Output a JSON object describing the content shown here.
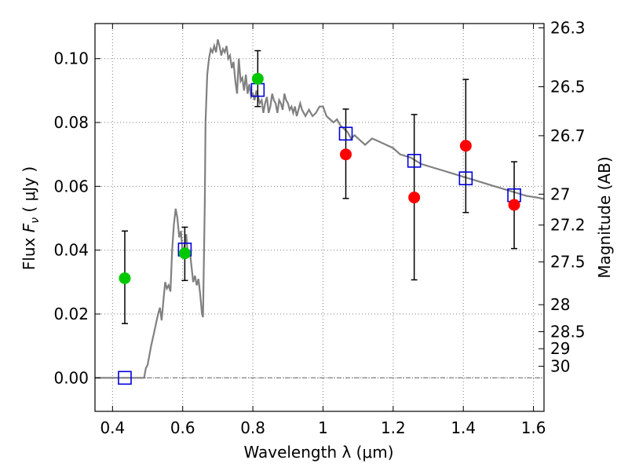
{
  "chart_data": {
    "type": "scatter",
    "title": "",
    "xlabel": "Wavelength  λ (μm)",
    "ylabel_prefix": "Flux  ",
    "ylabel_symbol": "F",
    "ylabel_subscript": "ν",
    "ylabel_unit": "  ( μJy )",
    "y2label": "Magnitude (AB)",
    "xlim": [
      0.35,
      1.63
    ],
    "ylim": [
      -0.0105,
      0.111
    ],
    "grid": true,
    "xticks": [
      0.4,
      0.6,
      0.8,
      1.0,
      1.2,
      1.4,
      1.6
    ],
    "xtick_labels": [
      "0.4",
      "0.6",
      "0.8",
      "1",
      "1.2",
      "1.4",
      "1.6"
    ],
    "yticks": [
      0.0,
      0.02,
      0.04,
      0.06,
      0.08,
      0.1
    ],
    "ytick_labels": [
      "0.00",
      "0.02",
      "0.04",
      "0.06",
      "0.08",
      "0.10"
    ],
    "y2ticks": [
      {
        "label": "26.3",
        "mag": 26.3
      },
      {
        "label": "26.5",
        "mag": 26.5
      },
      {
        "label": "26.7",
        "mag": 26.7
      },
      {
        "label": "27",
        "mag": 27.0
      },
      {
        "label": "27.2",
        "mag": 27.2
      },
      {
        "label": "27.5",
        "mag": 27.5
      },
      {
        "label": "28",
        "mag": 28.0
      },
      {
        "label": "28.5",
        "mag": 28.5
      },
      {
        "label": "29",
        "mag": 29.0
      },
      {
        "label": "30",
        "mag": 30.0
      }
    ],
    "colors": {
      "model": "#808080",
      "green": "#00c800",
      "red": "#ff0000",
      "box": "#0000dd",
      "errorbar": "#000000",
      "zero_line": "#666666",
      "grid": "#7f7f7f"
    },
    "series": [
      {
        "name": "model-sed",
        "kind": "line",
        "x": [
          0.35,
          0.49,
          0.495,
          0.5,
          0.51,
          0.52,
          0.53,
          0.535,
          0.54,
          0.545,
          0.55,
          0.555,
          0.56,
          0.565,
          0.57,
          0.575,
          0.58,
          0.585,
          0.59,
          0.595,
          0.6,
          0.605,
          0.61,
          0.615,
          0.62,
          0.625,
          0.63,
          0.635,
          0.64,
          0.645,
          0.65,
          0.655,
          0.658,
          0.663,
          0.665,
          0.67,
          0.675,
          0.68,
          0.685,
          0.69,
          0.695,
          0.7,
          0.705,
          0.71,
          0.715,
          0.72,
          0.725,
          0.73,
          0.735,
          0.74,
          0.745,
          0.75,
          0.755,
          0.76,
          0.765,
          0.77,
          0.775,
          0.78,
          0.785,
          0.79,
          0.795,
          0.8,
          0.805,
          0.81,
          0.815,
          0.82,
          0.825,
          0.83,
          0.835,
          0.84,
          0.845,
          0.85,
          0.855,
          0.86,
          0.865,
          0.87,
          0.875,
          0.88,
          0.885,
          0.89,
          0.895,
          0.9,
          0.905,
          0.91,
          0.915,
          0.92,
          0.925,
          0.93,
          0.935,
          0.94,
          0.95,
          0.96,
          0.97,
          0.98,
          0.99,
          1.0,
          1.01,
          1.02,
          1.03,
          1.04,
          1.05,
          1.06,
          1.07,
          1.08,
          1.09,
          1.1,
          1.12,
          1.14,
          1.16,
          1.18,
          1.2,
          1.22,
          1.25,
          1.28,
          1.31,
          1.34,
          1.37,
          1.4,
          1.43,
          1.46,
          1.49,
          1.52,
          1.55,
          1.58,
          1.61,
          1.63
        ],
        "y": [
          0.0,
          0.0,
          0.003,
          0.004,
          0.01,
          0.015,
          0.02,
          0.022,
          0.018,
          0.024,
          0.03,
          0.028,
          0.029,
          0.027,
          0.04,
          0.048,
          0.053,
          0.05,
          0.044,
          0.046,
          0.039,
          0.041,
          0.045,
          0.038,
          0.04,
          0.035,
          0.03,
          0.032,
          0.029,
          0.031,
          0.026,
          0.02,
          0.019,
          0.055,
          0.08,
          0.095,
          0.1,
          0.103,
          0.102,
          0.104,
          0.102,
          0.106,
          0.104,
          0.101,
          0.103,
          0.102,
          0.104,
          0.1,
          0.101,
          0.097,
          0.099,
          0.093,
          0.089,
          0.1,
          0.093,
          0.094,
          0.09,
          0.095,
          0.089,
          0.092,
          0.088,
          0.089,
          0.087,
          0.09,
          0.088,
          0.086,
          0.087,
          0.083,
          0.086,
          0.088,
          0.083,
          0.085,
          0.089,
          0.087,
          0.086,
          0.083,
          0.087,
          0.086,
          0.084,
          0.089,
          0.087,
          0.086,
          0.084,
          0.085,
          0.083,
          0.085,
          0.082,
          0.084,
          0.086,
          0.084,
          0.082,
          0.084,
          0.082,
          0.083,
          0.085,
          0.085,
          0.082,
          0.081,
          0.08,
          0.081,
          0.079,
          0.078,
          0.077,
          0.075,
          0.076,
          0.075,
          0.073,
          0.075,
          0.074,
          0.073,
          0.072,
          0.07,
          0.069,
          0.067,
          0.066,
          0.065,
          0.064,
          0.063,
          0.062,
          0.061,
          0.06,
          0.059,
          0.058,
          0.057,
          0.0565,
          0.056
        ]
      },
      {
        "name": "green-points",
        "kind": "marker",
        "marker": "circle",
        "points": [
          {
            "x": 0.435,
            "y": 0.0312,
            "yerr_low": 0.017,
            "yerr_high": 0.046
          },
          {
            "x": 0.606,
            "y": 0.039,
            "yerr_low": 0.0305,
            "yerr_high": 0.0472
          },
          {
            "x": 0.814,
            "y": 0.0937,
            "yerr_low": 0.085,
            "yerr_high": 0.1025
          }
        ]
      },
      {
        "name": "red-points",
        "kind": "marker",
        "marker": "circle",
        "points": [
          {
            "x": 1.065,
            "y": 0.07,
            "yerr_low": 0.0562,
            "yerr_high": 0.0842
          },
          {
            "x": 1.26,
            "y": 0.0565,
            "yerr_low": 0.0307,
            "yerr_high": 0.0825
          },
          {
            "x": 1.407,
            "y": 0.0727,
            "yerr_low": 0.0518,
            "yerr_high": 0.0935
          },
          {
            "x": 1.545,
            "y": 0.0542,
            "yerr_low": 0.0405,
            "yerr_high": 0.0677
          }
        ]
      },
      {
        "name": "model-photometry",
        "kind": "marker",
        "marker": "open-square",
        "points": [
          {
            "x": 0.435,
            "y": 0.0
          },
          {
            "x": 0.606,
            "y": 0.0402
          },
          {
            "x": 0.814,
            "y": 0.0902
          },
          {
            "x": 1.065,
            "y": 0.0765
          },
          {
            "x": 1.26,
            "y": 0.068
          },
          {
            "x": 1.407,
            "y": 0.0625
          },
          {
            "x": 1.545,
            "y": 0.0572
          }
        ]
      }
    ]
  }
}
